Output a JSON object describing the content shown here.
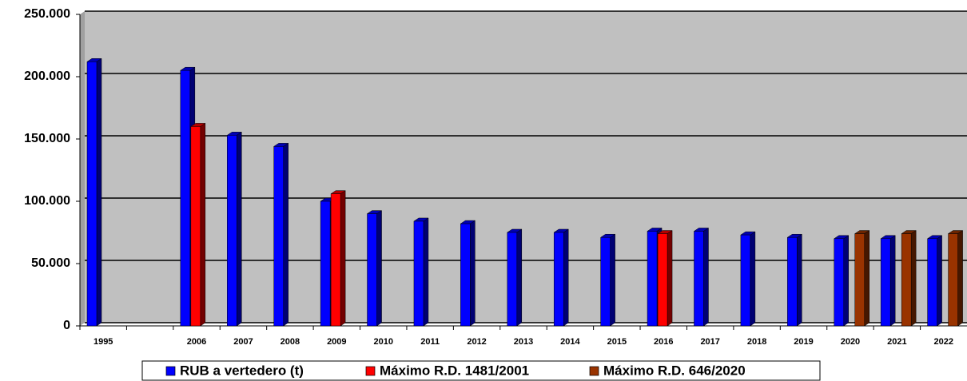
{
  "chart_data": {
    "type": "bar3d",
    "categories": [
      "1995",
      null,
      "2006",
      "2007",
      "2008",
      "2009",
      "2010",
      "2011",
      "2012",
      "2013",
      "2014",
      "2015",
      "2016",
      "2017",
      "2018",
      "2019",
      "2020",
      "2021",
      "2022"
    ],
    "series": [
      {
        "name": "RUB a vertedero (t)",
        "color": "#0000ff",
        "values": [
          212000,
          null,
          205000,
          153000,
          144000,
          100000,
          90000,
          84000,
          82000,
          75000,
          75000,
          71000,
          76000,
          76000,
          73000,
          71000,
          70000,
          70000,
          70000
        ]
      },
      {
        "name": "Máximo R.D. 1481/2001",
        "color": "#ff0000",
        "values": [
          null,
          null,
          160000,
          null,
          null,
          106000,
          null,
          null,
          null,
          null,
          null,
          null,
          74000,
          null,
          null,
          null,
          null,
          null,
          null
        ]
      },
      {
        "name": "Máximo R.D. 646/2020",
        "color": "#993300",
        "values": [
          null,
          null,
          null,
          null,
          null,
          null,
          null,
          null,
          null,
          null,
          null,
          null,
          null,
          null,
          null,
          null,
          74000,
          74000,
          74000
        ]
      }
    ],
    "ylim": [
      0,
      250000
    ],
    "yticks": [
      0,
      {
        "value": 50000,
        "label": "50.000"
      },
      {
        "value": 100000,
        "label": "100.000"
      },
      {
        "value": 150000,
        "label": "150.000"
      },
      {
        "value": 200000,
        "label": "200.000"
      },
      {
        "value": 250000,
        "label": "250.000"
      }
    ],
    "grid": true,
    "legend": "bottom"
  }
}
